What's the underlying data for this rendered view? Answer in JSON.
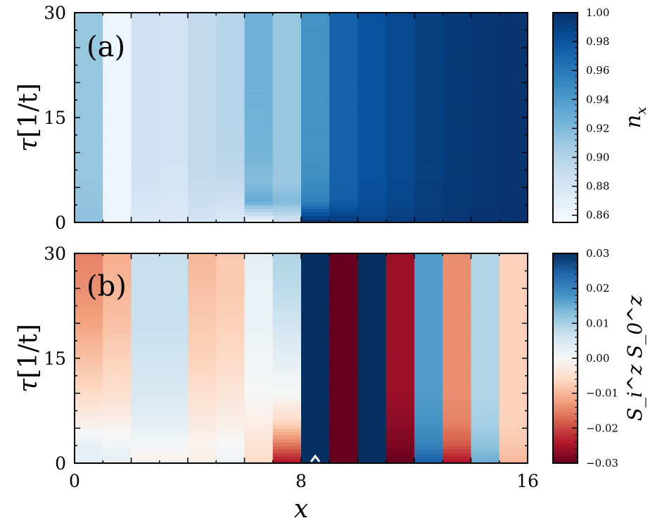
{
  "chart_data": [
    {
      "type": "heatmap",
      "panel_label": "(a)",
      "xlabel": "x",
      "ylabel_main": "τ",
      "ylabel_unit": "[1/t]",
      "x_ticks": [
        "0",
        "8",
        "16"
      ],
      "y_ticks": [
        "0",
        "15",
        "30"
      ],
      "xlim": [
        0,
        16
      ],
      "ylim": [
        0,
        30
      ],
      "colormap": "Blues",
      "colorbar": {
        "label_main": "n",
        "label_sub": "x",
        "range": [
          0.855,
          1.0
        ],
        "ticks": [
          "0.86",
          "0.88",
          "0.90",
          "0.92",
          "0.94",
          "0.96",
          "0.98",
          "1.00"
        ],
        "tick_values": [
          0.86,
          0.88,
          0.9,
          0.92,
          0.94,
          0.96,
          0.98,
          1.0
        ]
      },
      "tau": [
        0,
        3,
        6,
        10,
        15,
        20,
        25,
        30
      ],
      "columns": [
        [
          0.915,
          0.913,
          0.912,
          0.912,
          0.912,
          0.912,
          0.912,
          0.912
        ],
        [
          0.862,
          0.862,
          0.862,
          0.862,
          0.862,
          0.862,
          0.862,
          0.862
        ],
        [
          0.875,
          0.88,
          0.883,
          0.884,
          0.884,
          0.884,
          0.884,
          0.884
        ],
        [
          0.875,
          0.878,
          0.88,
          0.882,
          0.882,
          0.882,
          0.882,
          0.882
        ],
        [
          0.88,
          0.888,
          0.892,
          0.893,
          0.893,
          0.893,
          0.893,
          0.893
        ],
        [
          0.875,
          0.885,
          0.893,
          0.897,
          0.898,
          0.898,
          0.898,
          0.898
        ],
        [
          0.86,
          0.93,
          0.918,
          0.924,
          0.925,
          0.926,
          0.926,
          0.926
        ],
        [
          0.88,
          0.92,
          0.91,
          0.912,
          0.912,
          0.912,
          0.912,
          0.912
        ],
        [
          1.0,
          0.955,
          0.948,
          0.945,
          0.945,
          0.945,
          0.945,
          0.945
        ],
        [
          0.995,
          0.975,
          0.972,
          0.972,
          0.972,
          0.972,
          0.972,
          0.972
        ],
        [
          0.99,
          0.983,
          0.982,
          0.982,
          0.982,
          0.982,
          0.982,
          0.982
        ],
        [
          0.993,
          0.988,
          0.987,
          0.987,
          0.987,
          0.987,
          0.987,
          0.987
        ],
        [
          0.995,
          0.993,
          0.992,
          0.992,
          0.992,
          0.992,
          0.992,
          0.992
        ],
        [
          0.997,
          0.995,
          0.995,
          0.995,
          0.995,
          0.995,
          0.995,
          0.995
        ],
        [
          0.998,
          0.997,
          0.997,
          0.997,
          0.997,
          0.997,
          0.997,
          0.997
        ],
        [
          0.999,
          0.998,
          0.998,
          0.998,
          0.998,
          0.998,
          0.998,
          0.998
        ]
      ]
    },
    {
      "type": "heatmap",
      "panel_label": "(b)",
      "xlabel": "x",
      "ylabel_main": "τ",
      "ylabel_unit": "[1/t]",
      "x_ticks": [
        "0",
        "8",
        "16"
      ],
      "y_ticks": [
        "0",
        "15",
        "30"
      ],
      "xlim": [
        0,
        16
      ],
      "ylim": [
        0,
        30
      ],
      "colormap": "RdBu",
      "marker_x": 8.5,
      "colorbar": {
        "label": "S_i^z S_0^z",
        "range": [
          -0.03,
          0.03
        ],
        "ticks": [
          "−0.03",
          "−0.02",
          "−0.01",
          "0.00",
          "0.01",
          "0.02",
          "0.03"
        ],
        "tick_values": [
          -0.03,
          -0.02,
          -0.01,
          0.0,
          0.01,
          0.02,
          0.03
        ]
      },
      "tau": [
        0,
        3,
        6,
        10,
        15,
        20,
        25,
        30
      ],
      "columns": [
        [
          0.003,
          0.002,
          -0.002,
          -0.006,
          -0.009,
          -0.012,
          -0.014,
          -0.015
        ],
        [
          0.003,
          0.001,
          -0.002,
          -0.005,
          -0.007,
          -0.009,
          -0.01,
          -0.011
        ],
        [
          -0.002,
          0.001,
          0.003,
          0.005,
          0.006,
          0.007,
          0.007,
          0.007
        ],
        [
          -0.002,
          0.001,
          0.003,
          0.005,
          0.006,
          0.007,
          0.007,
          0.007
        ],
        [
          -0.002,
          -0.001,
          -0.003,
          -0.005,
          -0.007,
          -0.008,
          -0.009,
          -0.01
        ],
        [
          0.002,
          0.0,
          -0.002,
          -0.004,
          -0.006,
          -0.007,
          -0.008,
          -0.008
        ],
        [
          -0.006,
          -0.004,
          -0.002,
          0.0,
          0.001,
          0.002,
          0.002,
          0.003
        ],
        [
          -0.025,
          -0.015,
          -0.006,
          0.0,
          0.003,
          0.006,
          0.008,
          0.009
        ],
        [
          0.03,
          0.03,
          0.03,
          0.03,
          0.03,
          0.03,
          0.03,
          0.03
        ],
        [
          -0.03,
          -0.03,
          -0.03,
          -0.03,
          -0.03,
          -0.03,
          -0.03,
          -0.03
        ],
        [
          0.03,
          0.03,
          0.03,
          0.03,
          0.03,
          0.03,
          0.03,
          0.03
        ],
        [
          -0.03,
          -0.028,
          -0.027,
          -0.026,
          -0.026,
          -0.026,
          -0.026,
          -0.026
        ],
        [
          0.025,
          0.02,
          0.018,
          0.017,
          0.017,
          0.017,
          0.017,
          0.017
        ],
        [
          -0.025,
          -0.018,
          -0.015,
          -0.014,
          -0.014,
          -0.014,
          -0.014,
          -0.014
        ],
        [
          0.015,
          0.012,
          0.01,
          0.009,
          0.009,
          0.009,
          0.009,
          0.009
        ],
        [
          -0.01,
          -0.008,
          -0.007,
          -0.007,
          -0.007,
          -0.007,
          -0.007,
          -0.007
        ]
      ]
    }
  ]
}
